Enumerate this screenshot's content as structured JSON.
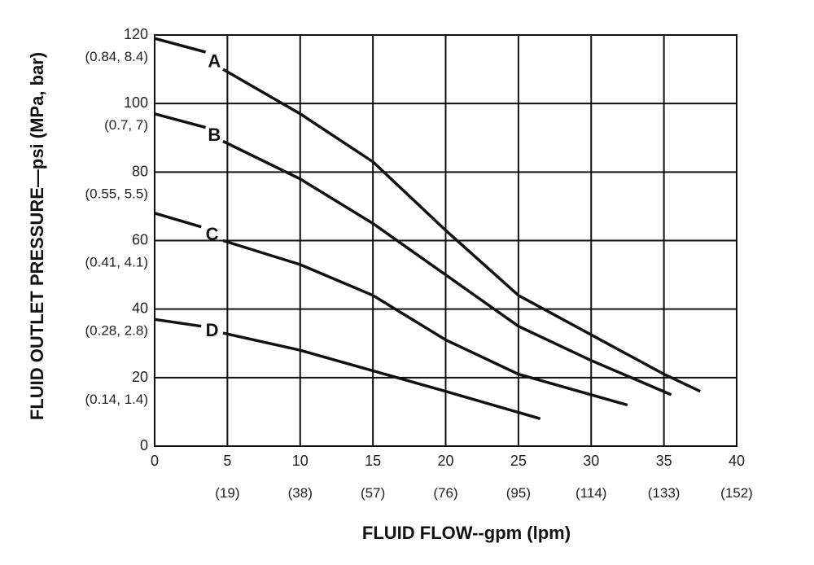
{
  "chart_data": {
    "type": "line",
    "xlabel": "FLUID FLOW--gpm (lpm)",
    "ylabel": "FLUID OUTLET PRESSURE—psi (MPa, bar)",
    "xlim": [
      0,
      40
    ],
    "ylim": [
      0,
      120
    ],
    "grid": true,
    "x_ticks": [
      "0",
      "5",
      "10",
      "15",
      "20",
      "25",
      "30",
      "35",
      "40"
    ],
    "x_secondary_ticks": [
      "(19)",
      "(38)",
      "(57)",
      "(76)",
      "(95)",
      "(114)",
      "(133)",
      "(152)"
    ],
    "y_ticks": [
      "0",
      "20",
      "40",
      "60",
      "80",
      "100",
      "120"
    ],
    "y_secondary_ticks": [
      "(0.14, 1.4)",
      "(0.28, 2.8)",
      "(0.41, 4.1)",
      "(0.55, 5.5)",
      "(0.7, 7)",
      "(0.84, 8.4)"
    ],
    "series": [
      {
        "name": "A",
        "dashed": [
          [
            0,
            119
          ],
          [
            3.5,
            115
          ]
        ],
        "points": [
          [
            4.7,
            110
          ],
          [
            10,
            97
          ],
          [
            15,
            83
          ],
          [
            20,
            63
          ],
          [
            25,
            44
          ],
          [
            35,
            21
          ],
          [
            37.5,
            16
          ]
        ]
      },
      {
        "name": "B",
        "dashed": [
          [
            0,
            97
          ],
          [
            3.5,
            93
          ]
        ],
        "points": [
          [
            4.7,
            89
          ],
          [
            10,
            78
          ],
          [
            15,
            65
          ],
          [
            20,
            50
          ],
          [
            25,
            35
          ],
          [
            30,
            25
          ],
          [
            35.5,
            15
          ]
        ]
      },
      {
        "name": "C",
        "dashed": [
          [
            0,
            68
          ],
          [
            3.2,
            64
          ]
        ],
        "points": [
          [
            4.7,
            60
          ],
          [
            10,
            53
          ],
          [
            15,
            44
          ],
          [
            20,
            31
          ],
          [
            25,
            21
          ],
          [
            32.5,
            12
          ]
        ]
      },
      {
        "name": "D",
        "dashed": [
          [
            0,
            37
          ],
          [
            3.2,
            35
          ]
        ],
        "points": [
          [
            4.7,
            33
          ],
          [
            10,
            28
          ],
          [
            15,
            22
          ],
          [
            20,
            16
          ],
          [
            26.5,
            8
          ]
        ]
      }
    ]
  }
}
